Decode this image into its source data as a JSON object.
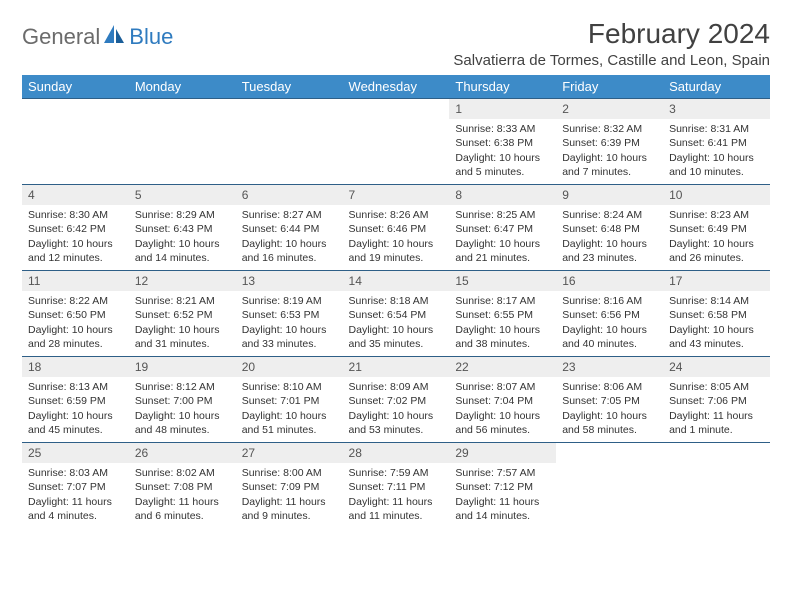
{
  "logo": {
    "text1": "General",
    "text2": "Blue"
  },
  "title": "February 2024",
  "location": "Salvatierra de Tormes, Castille and Leon, Spain",
  "colors": {
    "header_bg": "#3d8bc8",
    "header_text": "#ffffff",
    "row_divider": "#2e5f87",
    "daynum_bg": "#eeeeee",
    "logo_gray": "#6b6b6b",
    "logo_blue": "#2f7bbf",
    "body_text": "#333333"
  },
  "weekdays": [
    "Sunday",
    "Monday",
    "Tuesday",
    "Wednesday",
    "Thursday",
    "Friday",
    "Saturday"
  ],
  "weeks": [
    [
      null,
      null,
      null,
      null,
      {
        "d": "1",
        "sr": "8:33 AM",
        "ss": "6:38 PM",
        "dl": "10 hours and 5 minutes."
      },
      {
        "d": "2",
        "sr": "8:32 AM",
        "ss": "6:39 PM",
        "dl": "10 hours and 7 minutes."
      },
      {
        "d": "3",
        "sr": "8:31 AM",
        "ss": "6:41 PM",
        "dl": "10 hours and 10 minutes."
      }
    ],
    [
      {
        "d": "4",
        "sr": "8:30 AM",
        "ss": "6:42 PM",
        "dl": "10 hours and 12 minutes."
      },
      {
        "d": "5",
        "sr": "8:29 AM",
        "ss": "6:43 PM",
        "dl": "10 hours and 14 minutes."
      },
      {
        "d": "6",
        "sr": "8:27 AM",
        "ss": "6:44 PM",
        "dl": "10 hours and 16 minutes."
      },
      {
        "d": "7",
        "sr": "8:26 AM",
        "ss": "6:46 PM",
        "dl": "10 hours and 19 minutes."
      },
      {
        "d": "8",
        "sr": "8:25 AM",
        "ss": "6:47 PM",
        "dl": "10 hours and 21 minutes."
      },
      {
        "d": "9",
        "sr": "8:24 AM",
        "ss": "6:48 PM",
        "dl": "10 hours and 23 minutes."
      },
      {
        "d": "10",
        "sr": "8:23 AM",
        "ss": "6:49 PM",
        "dl": "10 hours and 26 minutes."
      }
    ],
    [
      {
        "d": "11",
        "sr": "8:22 AM",
        "ss": "6:50 PM",
        "dl": "10 hours and 28 minutes."
      },
      {
        "d": "12",
        "sr": "8:21 AM",
        "ss": "6:52 PM",
        "dl": "10 hours and 31 minutes."
      },
      {
        "d": "13",
        "sr": "8:19 AM",
        "ss": "6:53 PM",
        "dl": "10 hours and 33 minutes."
      },
      {
        "d": "14",
        "sr": "8:18 AM",
        "ss": "6:54 PM",
        "dl": "10 hours and 35 minutes."
      },
      {
        "d": "15",
        "sr": "8:17 AM",
        "ss": "6:55 PM",
        "dl": "10 hours and 38 minutes."
      },
      {
        "d": "16",
        "sr": "8:16 AM",
        "ss": "6:56 PM",
        "dl": "10 hours and 40 minutes."
      },
      {
        "d": "17",
        "sr": "8:14 AM",
        "ss": "6:58 PM",
        "dl": "10 hours and 43 minutes."
      }
    ],
    [
      {
        "d": "18",
        "sr": "8:13 AM",
        "ss": "6:59 PM",
        "dl": "10 hours and 45 minutes."
      },
      {
        "d": "19",
        "sr": "8:12 AM",
        "ss": "7:00 PM",
        "dl": "10 hours and 48 minutes."
      },
      {
        "d": "20",
        "sr": "8:10 AM",
        "ss": "7:01 PM",
        "dl": "10 hours and 51 minutes."
      },
      {
        "d": "21",
        "sr": "8:09 AM",
        "ss": "7:02 PM",
        "dl": "10 hours and 53 minutes."
      },
      {
        "d": "22",
        "sr": "8:07 AM",
        "ss": "7:04 PM",
        "dl": "10 hours and 56 minutes."
      },
      {
        "d": "23",
        "sr": "8:06 AM",
        "ss": "7:05 PM",
        "dl": "10 hours and 58 minutes."
      },
      {
        "d": "24",
        "sr": "8:05 AM",
        "ss": "7:06 PM",
        "dl": "11 hours and 1 minute."
      }
    ],
    [
      {
        "d": "25",
        "sr": "8:03 AM",
        "ss": "7:07 PM",
        "dl": "11 hours and 4 minutes."
      },
      {
        "d": "26",
        "sr": "8:02 AM",
        "ss": "7:08 PM",
        "dl": "11 hours and 6 minutes."
      },
      {
        "d": "27",
        "sr": "8:00 AM",
        "ss": "7:09 PM",
        "dl": "11 hours and 9 minutes."
      },
      {
        "d": "28",
        "sr": "7:59 AM",
        "ss": "7:11 PM",
        "dl": "11 hours and 11 minutes."
      },
      {
        "d": "29",
        "sr": "7:57 AM",
        "ss": "7:12 PM",
        "dl": "11 hours and 14 minutes."
      },
      null,
      null
    ]
  ],
  "labels": {
    "sunrise": "Sunrise:",
    "sunset": "Sunset:",
    "daylight": "Daylight:"
  }
}
